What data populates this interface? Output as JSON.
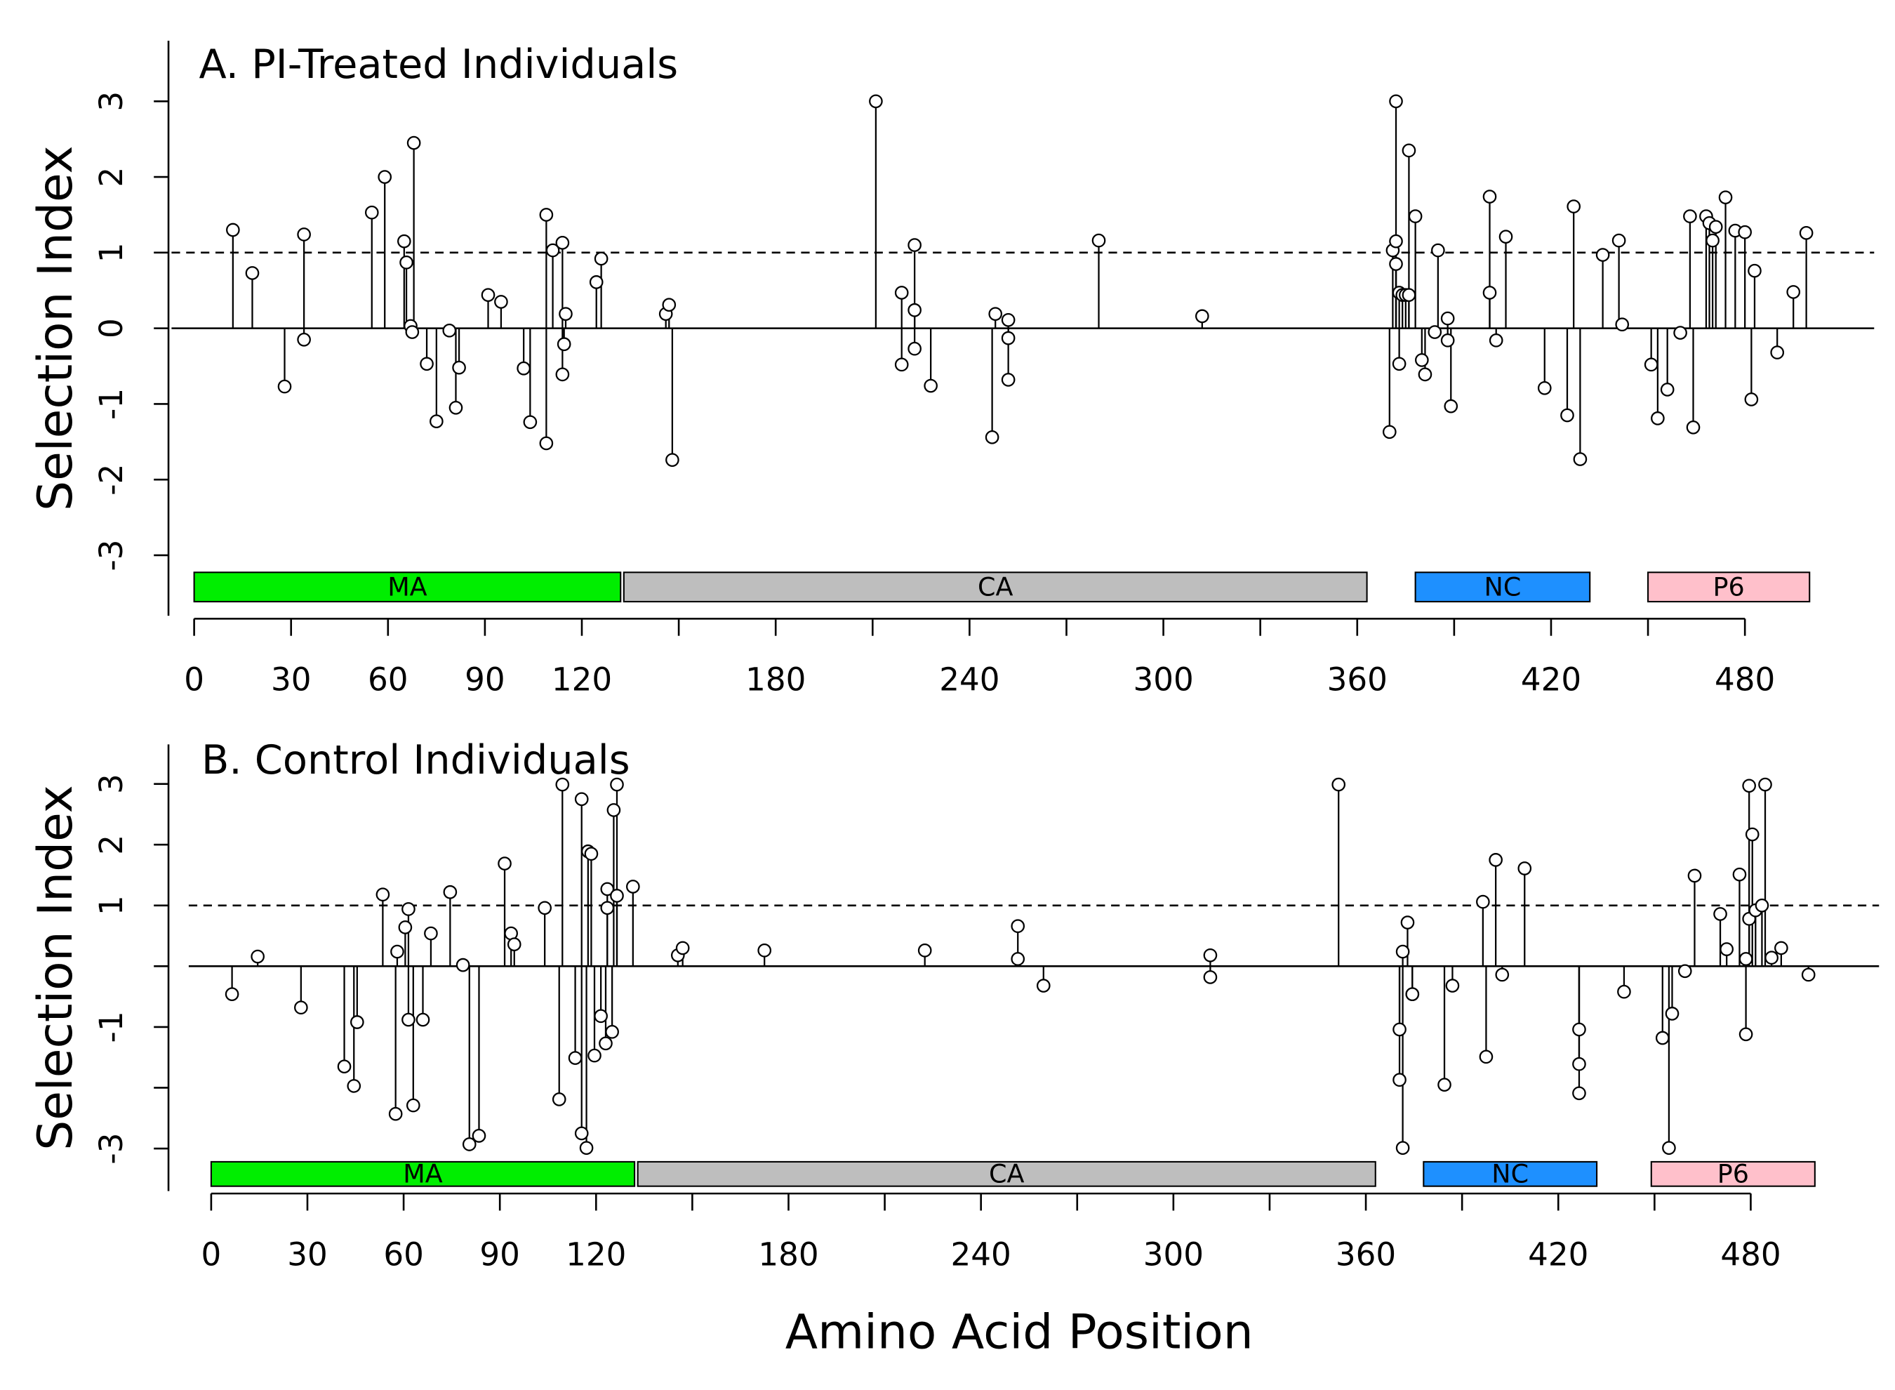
{
  "chart_data": [
    {
      "type": "lollipop",
      "title": "A. PI-Treated Individuals",
      "ylabel": "Selection Index",
      "x": [
        12,
        18,
        28,
        34,
        34,
        55,
        59,
        65,
        65.7,
        67,
        67.5,
        68,
        72,
        75,
        79,
        81,
        82,
        91,
        95,
        102,
        104,
        109,
        109,
        111,
        114,
        114,
        114.5,
        115,
        124.5,
        126,
        146,
        147,
        148,
        211,
        219,
        219,
        223,
        223,
        223,
        228,
        247,
        248,
        252,
        252,
        252,
        280,
        312,
        370,
        371,
        372,
        372,
        372,
        373,
        373,
        374,
        375,
        376,
        376,
        378,
        380,
        381,
        384,
        385,
        388,
        388,
        389,
        401,
        401,
        403,
        406,
        418,
        425,
        427,
        429,
        436,
        441,
        442,
        451,
        453,
        456,
        460,
        463,
        464,
        468,
        469,
        470,
        471,
        474,
        477,
        480,
        482,
        483,
        490,
        495,
        499
      ],
      "values": [
        1.3,
        0.73,
        -0.77,
        1.24,
        -0.15,
        1.53,
        2.0,
        1.15,
        0.87,
        0.03,
        -0.05,
        2.45,
        -0.47,
        -1.23,
        -0.03,
        -1.05,
        -0.52,
        0.44,
        0.35,
        -0.53,
        -1.24,
        1.5,
        -1.52,
        1.03,
        1.13,
        -0.61,
        -0.21,
        0.19,
        0.61,
        0.92,
        0.19,
        0.31,
        -1.74,
        3.0,
        0.47,
        -0.48,
        1.1,
        0.24,
        -0.27,
        -0.76,
        -1.44,
        0.19,
        0.11,
        -0.13,
        -0.68,
        1.16,
        0.16,
        -1.37,
        1.03,
        3.0,
        1.15,
        0.85,
        0.47,
        -0.47,
        0.44,
        0.44,
        0.44,
        2.35,
        1.48,
        -0.42,
        -0.61,
        -0.05,
        1.03,
        0.13,
        -0.16,
        -1.03,
        1.74,
        0.47,
        -0.16,
        1.21,
        -0.79,
        -1.15,
        1.61,
        -1.73,
        0.97,
        1.16,
        0.05,
        -0.48,
        -1.19,
        -0.81,
        -0.06,
        1.48,
        -1.31,
        1.48,
        1.39,
        1.16,
        1.34,
        1.73,
        1.29,
        1.27,
        -0.94,
        0.76,
        -0.32,
        0.48,
        1.26
      ],
      "xlim": [
        -7,
        520
      ],
      "ylim": [
        -3.8,
        3.8
      ],
      "xticks": [
        0,
        30,
        60,
        90,
        120,
        {
          "value": 150,
          "label": null
        },
        180,
        {
          "value": 210,
          "label": null
        },
        240,
        {
          "value": 270,
          "label": null
        },
        300,
        {
          "value": 330,
          "label": null
        },
        360,
        {
          "value": 390,
          "label": null
        },
        420,
        {
          "value": 450,
          "label": null
        },
        480
      ],
      "yticks": [
        -3,
        -2,
        -1,
        0,
        1,
        2,
        3
      ],
      "hline": 1,
      "regions": [
        {
          "name": "MA",
          "start": 0,
          "end": 132,
          "color": "#00ee00"
        },
        {
          "name": "CA",
          "start": 133,
          "end": 363,
          "color": "#bebebe"
        },
        {
          "name": "NC",
          "start": 378,
          "end": 432,
          "color": "#1e90ff"
        },
        {
          "name": "P6",
          "start": 450,
          "end": 500,
          "color": "#ffc0cb"
        }
      ]
    },
    {
      "type": "lollipop",
      "title": "B. Control Individuals",
      "ylabel": "Selection Index",
      "xlabel": "Amino Acid Position",
      "x": [
        6.5,
        14.5,
        28,
        41.5,
        44.5,
        45.5,
        53.5,
        57.5,
        58,
        60.5,
        61.5,
        61.5,
        63,
        66,
        68.5,
        74.5,
        78.5,
        80.5,
        83.5,
        91.5,
        93.5,
        94.5,
        104,
        108.5,
        109.5,
        113.5,
        115.5,
        115.5,
        117,
        117.5,
        118.5,
        119.5,
        121.5,
        123,
        123.5,
        123.5,
        125,
        125.5,
        126.5,
        126.5,
        131.5,
        145.5,
        147,
        172.5,
        222.5,
        251.5,
        251.5,
        259.5,
        311.5,
        311.5,
        351.5,
        370.5,
        370.5,
        371.5,
        371.5,
        373,
        374.5,
        374.5,
        384.5,
        387,
        396.5,
        397.5,
        400.5,
        402.5,
        409.5,
        426.5,
        426.5,
        426.5,
        440.5,
        452.5,
        454.5,
        455.5,
        459.5,
        462.5,
        470.5,
        472.5,
        476.5,
        478.5,
        478.5,
        479.5,
        479.5,
        480.5,
        481.5,
        483.5,
        484.5,
        486.5,
        489.5,
        498
      ],
      "values": [
        -0.46,
        0.16,
        -0.68,
        -1.65,
        -1.97,
        -0.92,
        1.18,
        -2.43,
        0.24,
        0.64,
        0.94,
        -0.88,
        -2.29,
        -0.88,
        0.54,
        1.22,
        0.02,
        -2.93,
        -2.79,
        1.69,
        0.54,
        0.36,
        0.96,
        -2.19,
        2.99,
        -1.51,
        -2.75,
        2.75,
        -2.99,
        1.89,
        1.85,
        -1.47,
        -0.82,
        -1.27,
        1.27,
        0.96,
        -1.08,
        2.57,
        2.99,
        1.16,
        1.31,
        0.18,
        0.3,
        0.26,
        0.26,
        0.66,
        0.12,
        -0.32,
        0.18,
        -0.18,
        2.99,
        -1.04,
        -1.87,
        0.24,
        -2.99,
        0.72,
        -0.46,
        -0.46,
        -1.95,
        -0.32,
        1.06,
        -1.49,
        1.75,
        -0.14,
        1.61,
        -1.04,
        -1.61,
        -2.09,
        -0.42,
        -1.18,
        -2.99,
        -0.78,
        -0.08,
        1.49,
        0.86,
        0.28,
        1.51,
        -1.12,
        0.12,
        2.97,
        0.78,
        2.17,
        0.92,
        1.0,
        2.99,
        0.14,
        0.3,
        -0.14
      ],
      "xlim": [
        -7,
        520
      ],
      "ylim": [
        -3.7,
        3.65
      ],
      "xticks": [
        0,
        30,
        60,
        90,
        120,
        {
          "value": 150,
          "label": null
        },
        180,
        {
          "value": 210,
          "label": null
        },
        240,
        {
          "value": 270,
          "label": null
        },
        300,
        {
          "value": 330,
          "label": null
        },
        360,
        {
          "value": 390,
          "label": null
        },
        420,
        {
          "value": 450,
          "label": null
        },
        480
      ],
      "yticks": [
        -3,
        {
          "value": -2,
          "label": null
        },
        -1,
        {
          "value": 0,
          "label": null
        },
        1,
        2,
        3
      ],
      "hline": 1,
      "regions": [
        {
          "name": "MA",
          "start": 0,
          "end": 132,
          "color": "#00ee00"
        },
        {
          "name": "CA",
          "start": 133,
          "end": 363,
          "color": "#bebebe"
        },
        {
          "name": "NC",
          "start": 378,
          "end": 432,
          "color": "#1e90ff"
        },
        {
          "name": "P6",
          "start": 449,
          "end": 500,
          "color": "#ffc0cb"
        }
      ]
    }
  ]
}
